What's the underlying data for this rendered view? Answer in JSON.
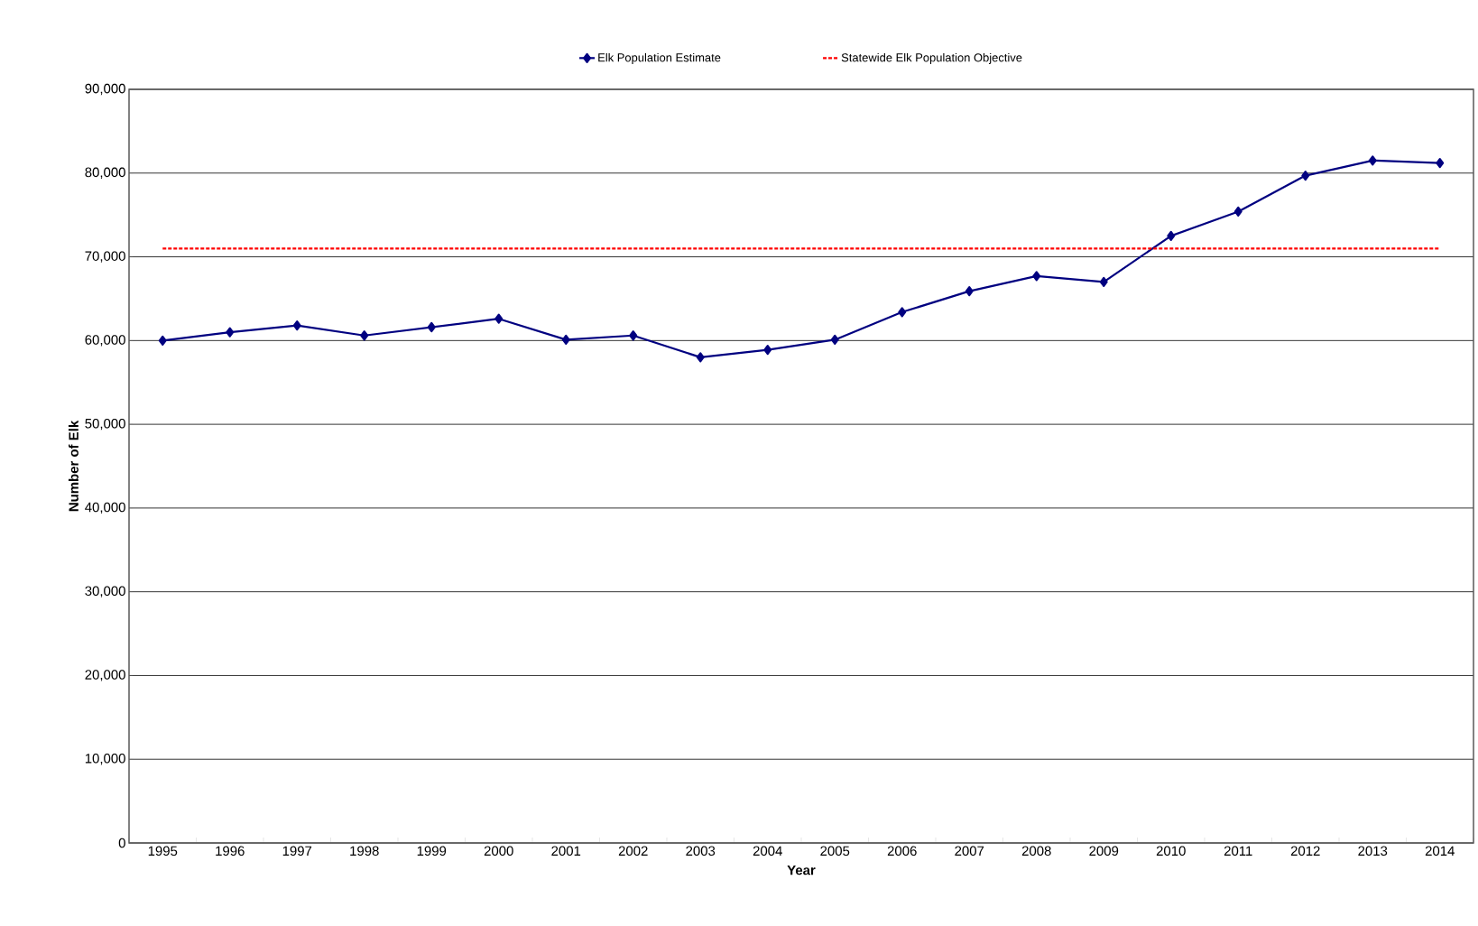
{
  "chart_data": {
    "type": "line",
    "xlabel": "Year",
    "ylabel": "Number of Elk",
    "categories": [
      "1995",
      "1996",
      "1997",
      "1998",
      "1999",
      "2000",
      "2001",
      "2002",
      "2003",
      "2004",
      "2005",
      "2006",
      "2007",
      "2008",
      "2009",
      "2010",
      "2011",
      "2012",
      "2013",
      "2014"
    ],
    "series": [
      {
        "name": "Elk Population Estimate",
        "color": "#000080",
        "marker": "diamond",
        "line_style": "solid",
        "values": [
          60000,
          61000,
          61800,
          60600,
          61600,
          62600,
          60100,
          60600,
          58000,
          58900,
          60100,
          63400,
          65900,
          67700,
          67000,
          72500,
          75400,
          79700,
          81500,
          81200
        ]
      },
      {
        "name": "Statewide Elk Population Objective",
        "color": "#ff0000",
        "marker": "none",
        "line_style": "dashed",
        "values": [
          71000,
          71000,
          71000,
          71000,
          71000,
          71000,
          71000,
          71000,
          71000,
          71000,
          71000,
          71000,
          71000,
          71000,
          71000,
          71000,
          71000,
          71000,
          71000,
          71000
        ]
      }
    ],
    "ylim": [
      0,
      90000
    ],
    "yticks": [
      0,
      {
        "value": 10000,
        "label": "10,000"
      },
      {
        "value": 20000,
        "label": "20,000"
      },
      {
        "value": 30000,
        "label": "30,000"
      },
      {
        "value": 40000,
        "label": "40,000"
      },
      {
        "value": 50000,
        "label": "50,000"
      },
      {
        "value": 60000,
        "label": "60,000"
      },
      {
        "value": 70000,
        "label": "70,000"
      },
      {
        "value": 80000,
        "label": "80,000"
      },
      {
        "value": 90000,
        "label": "90,000"
      }
    ],
    "grid": "y",
    "legend": "top"
  }
}
